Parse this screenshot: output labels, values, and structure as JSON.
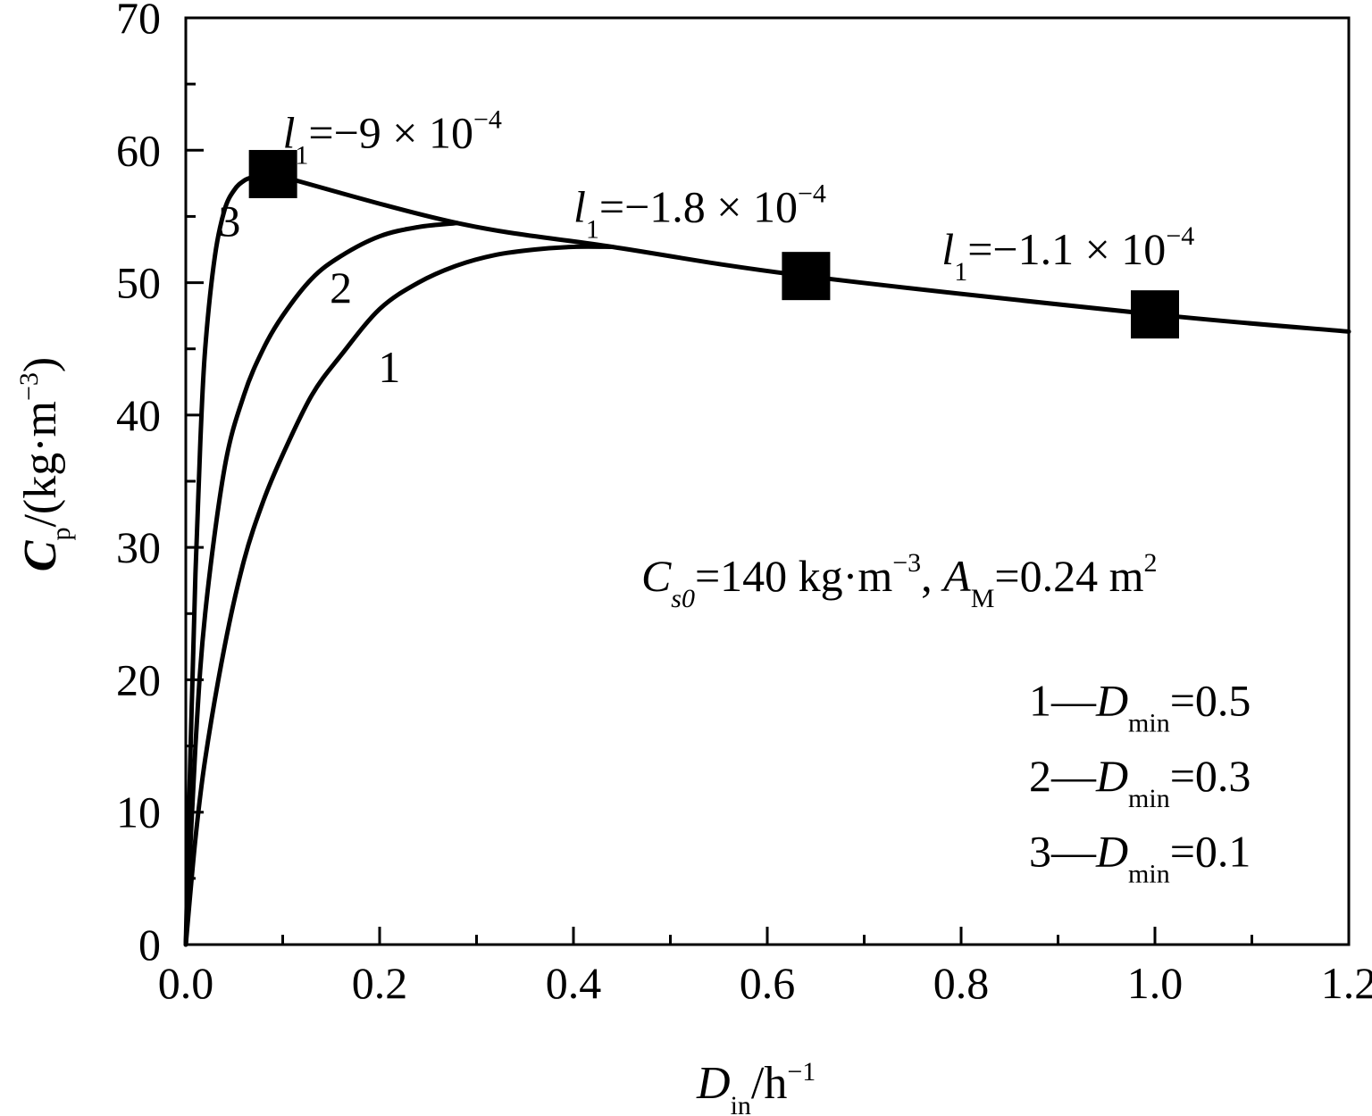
{
  "chart_data": {
    "type": "line",
    "title": "",
    "xlabel": {
      "main": "D",
      "sub": "in",
      "unit": "/h",
      "sup": "−1"
    },
    "ylabel": {
      "main": "C",
      "sub": "p",
      "unit": "/(kg·m",
      "sup": "−3",
      "close": ")"
    },
    "xlim": [
      0,
      1.2
    ],
    "ylim": [
      0,
      70
    ],
    "xticks": [
      {
        "value": 0.0,
        "label": "0.0"
      },
      {
        "value": 0.2,
        "label": "0.2"
      },
      {
        "value": 0.4,
        "label": "0.4"
      },
      {
        "value": 0.6,
        "label": "0.6"
      },
      {
        "value": 0.8,
        "label": "0.8"
      },
      {
        "value": 1.0,
        "label": "1.0"
      },
      {
        "value": 1.2,
        "label": "1.2"
      }
    ],
    "yticks": [
      {
        "value": 0,
        "label": "0"
      },
      {
        "value": 10,
        "label": "10"
      },
      {
        "value": 20,
        "label": "20"
      },
      {
        "value": 30,
        "label": "30"
      },
      {
        "value": 40,
        "label": "40"
      },
      {
        "value": 50,
        "label": "50"
      },
      {
        "value": 60,
        "label": "60"
      },
      {
        "value": 70,
        "label": "70"
      }
    ],
    "grid": false,
    "series": [
      {
        "name": "1",
        "label": "1",
        "label_at": [
          0.21,
          42.5
        ],
        "x": [
          0,
          0.01,
          0.02,
          0.04,
          0.06,
          0.08,
          0.1,
          0.13,
          0.16,
          0.2,
          0.24,
          0.28,
          0.32,
          0.36,
          0.4,
          0.44
        ],
        "y": [
          0,
          8,
          14,
          22.5,
          29,
          33.5,
          37,
          41.5,
          44.5,
          48,
          50,
          51.3,
          52.1,
          52.5,
          52.7,
          52.7
        ]
      },
      {
        "name": "2",
        "label": "2",
        "label_at": [
          0.16,
          48.5
        ],
        "x": [
          0,
          0.01,
          0.02,
          0.04,
          0.06,
          0.08,
          0.1,
          0.13,
          0.16,
          0.2,
          0.24,
          0.28
        ],
        "y": [
          0,
          15,
          25,
          36,
          41.5,
          45,
          47.5,
          50.3,
          52,
          53.5,
          54.2,
          54.5
        ]
      },
      {
        "name": "3",
        "label": "3",
        "label_at": [
          0.045,
          53.5
        ],
        "x": [
          0,
          0.005,
          0.01,
          0.015,
          0.02,
          0.03,
          0.04,
          0.05,
          0.06,
          0.07,
          0.08,
          0.09
        ],
        "y": [
          0,
          15,
          28,
          38,
          45,
          52,
          55.5,
          57,
          57.7,
          58,
          58.2,
          58.2
        ]
      },
      {
        "name": "envelope",
        "label": "",
        "x": [
          0.09,
          0.28,
          0.44,
          0.64,
          1.0,
          1.2
        ],
        "y": [
          58.2,
          54.5,
          52.7,
          50.5,
          47.6,
          46.3
        ]
      }
    ],
    "markers": [
      {
        "x": 0.09,
        "y": 58.2
      },
      {
        "x": 0.64,
        "y": 50.5
      },
      {
        "x": 1.0,
        "y": 47.6
      }
    ],
    "annotations": {
      "l1_labels": [
        {
          "var": "l",
          "sub": "1",
          "text": "=−9 × 10",
          "sup": "−4",
          "at": [
            0.1,
            60.2
          ]
        },
        {
          "var": "l",
          "sub": "1",
          "text": "=−1.8 × 10",
          "sup": "−4",
          "at": [
            0.4,
            54.6
          ]
        },
        {
          "var": "l",
          "sub": "1",
          "text": "=−1.1 × 10",
          "sup": "−4",
          "at": [
            0.78,
            51.4
          ]
        }
      ],
      "conditions": {
        "c_var": "C",
        "c_sub": "s0",
        "c_text": "=140 kg·m",
        "c_sup": "−3",
        "sep": ", ",
        "a_var": "A",
        "a_sub": "M",
        "a_text": "=0.24 m",
        "a_sup": "2",
        "at": [
          0.47,
          26.7
        ]
      },
      "legend": [
        {
          "num": "1",
          "dash": "—",
          "var": "D",
          "sub": "min",
          "text": "=0.5"
        },
        {
          "num": "2",
          "dash": "—",
          "var": "D",
          "sub": "min",
          "text": "=0.3"
        },
        {
          "num": "3",
          "dash": "—",
          "var": "D",
          "sub": "min",
          "text": "=0.1"
        }
      ],
      "legend_at": [
        0.87,
        17.3
      ],
      "legend_step": 5.7
    }
  }
}
